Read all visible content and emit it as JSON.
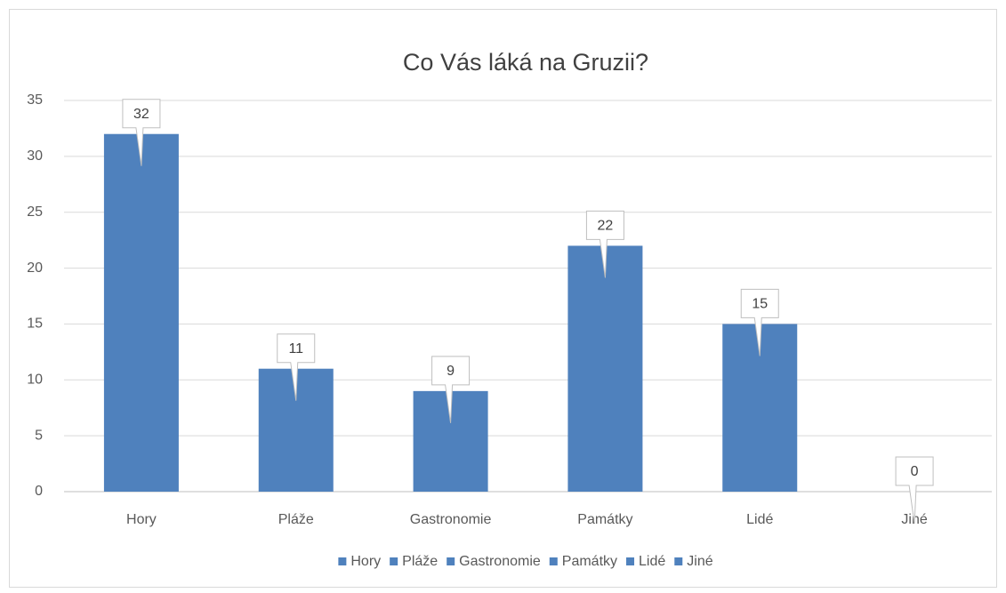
{
  "chart_data": {
    "type": "bar",
    "title": "Co Vás láká na Gruzii?",
    "categories": [
      "Hory",
      "Pláže",
      "Gastronomie",
      "Památky",
      "Lidé",
      "Jiné"
    ],
    "values": [
      32,
      11,
      9,
      22,
      15,
      0
    ],
    "color": "#4f81bd",
    "ylim": [
      0,
      35
    ],
    "yticks": [
      0,
      5,
      10,
      15,
      20,
      25,
      30,
      35
    ],
    "grid": true,
    "legend": "bottom"
  }
}
